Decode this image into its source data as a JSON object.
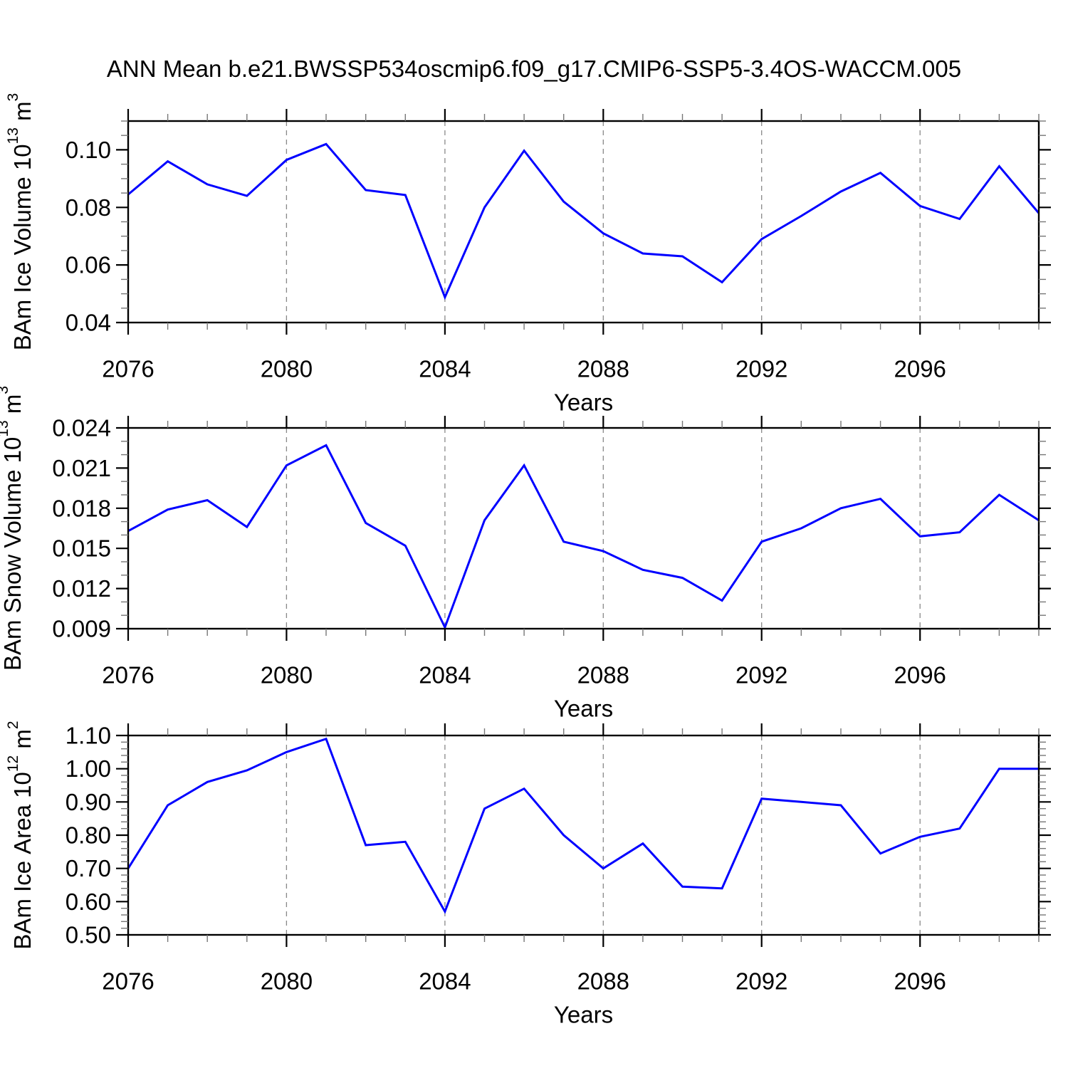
{
  "title": "ANN Mean b.e21.BWSSP534oscmip6.f09_g17.CMIP6-SSP5-3.4OS-WACCM.005",
  "chart_data": [
    {
      "type": "line",
      "name": "BAm Ice Volume",
      "ylabel": "BAm Ice Volume 10^{13} m^{3}",
      "xlabel": "Years",
      "x": [
        2076,
        2077,
        2078,
        2079,
        2080,
        2081,
        2082,
        2083,
        2084,
        2085,
        2086,
        2087,
        2088,
        2089,
        2090,
        2091,
        2092,
        2093,
        2094,
        2095,
        2096,
        2097,
        2098,
        2099
      ],
      "values": [
        0.0845,
        0.096,
        0.088,
        0.084,
        0.0965,
        0.102,
        0.086,
        0.0843,
        0.0488,
        0.08,
        0.0997,
        0.082,
        0.071,
        0.064,
        0.063,
        0.054,
        0.069,
        0.077,
        0.0855,
        0.092,
        0.0805,
        0.076,
        0.0943,
        0.078
      ],
      "xlim": [
        2076,
        2099
      ],
      "ylim": [
        0.04,
        0.11
      ],
      "ytick_values": [
        0.04,
        0.06,
        0.08,
        0.1
      ],
      "ytick_labels": [
        "0.04",
        "0.06",
        "0.08",
        "0.10"
      ],
      "yminor_step": 0.005,
      "xtick_values": [
        2076,
        2080,
        2084,
        2088,
        2092,
        2096
      ],
      "xtick_labels": [
        "2076",
        "2080",
        "2084",
        "2088",
        "2092",
        "2096"
      ],
      "xminor_step": 1,
      "grid_x": [
        2080,
        2084,
        2088,
        2092,
        2096
      ],
      "grid_on": true,
      "legend": "none",
      "line_color": "#0000ff"
    },
    {
      "type": "line",
      "name": "BAm Snow Volume",
      "ylabel": "BAm Snow Volume 10^{13} m^{3}",
      "xlabel": "Years",
      "x": [
        2076,
        2077,
        2078,
        2079,
        2080,
        2081,
        2082,
        2083,
        2084,
        2085,
        2086,
        2087,
        2088,
        2089,
        2090,
        2091,
        2092,
        2093,
        2094,
        2095,
        2096,
        2097,
        2098,
        2099
      ],
      "values": [
        0.0163,
        0.0179,
        0.0186,
        0.0166,
        0.0212,
        0.0227,
        0.0169,
        0.0152,
        0.0091,
        0.0171,
        0.0212,
        0.0155,
        0.0148,
        0.0134,
        0.0128,
        0.0111,
        0.0155,
        0.0165,
        0.018,
        0.0187,
        0.0159,
        0.0162,
        0.019,
        0.0171
      ],
      "xlim": [
        2076,
        2099
      ],
      "ylim": [
        0.009,
        0.024
      ],
      "ytick_values": [
        0.009,
        0.012,
        0.015,
        0.018,
        0.021,
        0.024
      ],
      "ytick_labels": [
        "0.009",
        "0.012",
        "0.015",
        "0.018",
        "0.021",
        "0.024"
      ],
      "yminor_step": 0.001,
      "xtick_values": [
        2076,
        2080,
        2084,
        2088,
        2092,
        2096
      ],
      "xtick_labels": [
        "2076",
        "2080",
        "2084",
        "2088",
        "2092",
        "2096"
      ],
      "xminor_step": 1,
      "grid_x": [
        2080,
        2084,
        2088,
        2092,
        2096
      ],
      "grid_on": true,
      "legend": "none",
      "line_color": "#0000ff"
    },
    {
      "type": "line",
      "name": "BAm Ice Area",
      "ylabel": "BAm Ice Area 10^{12} m^{2}",
      "xlabel": "Years",
      "x": [
        2076,
        2077,
        2078,
        2079,
        2080,
        2081,
        2082,
        2083,
        2084,
        2085,
        2086,
        2087,
        2088,
        2089,
        2090,
        2091,
        2092,
        2093,
        2094,
        2095,
        2096,
        2097,
        2098,
        2099
      ],
      "values": [
        0.7,
        0.89,
        0.96,
        0.995,
        1.05,
        1.09,
        0.77,
        0.78,
        0.57,
        0.88,
        0.94,
        0.8,
        0.7,
        0.775,
        0.645,
        0.64,
        0.91,
        0.9,
        0.89,
        0.745,
        0.795,
        0.82,
        1.0,
        1.0
      ],
      "xlim": [
        2076,
        2099
      ],
      "ylim": [
        0.5,
        1.1
      ],
      "ytick_values": [
        0.5,
        0.6,
        0.7,
        0.8,
        0.9,
        1.0,
        1.1
      ],
      "ytick_labels": [
        "0.50",
        "0.60",
        "0.70",
        "0.80",
        "0.90",
        "1.00",
        "1.10"
      ],
      "yminor_step": 0.02,
      "xtick_values": [
        2076,
        2080,
        2084,
        2088,
        2092,
        2096
      ],
      "xtick_labels": [
        "2076",
        "2080",
        "2084",
        "2088",
        "2092",
        "2096"
      ],
      "xminor_step": 1,
      "grid_x": [
        2080,
        2084,
        2088,
        2092,
        2096
      ],
      "grid_on": true,
      "legend": "none",
      "line_color": "#0000ff"
    }
  ]
}
